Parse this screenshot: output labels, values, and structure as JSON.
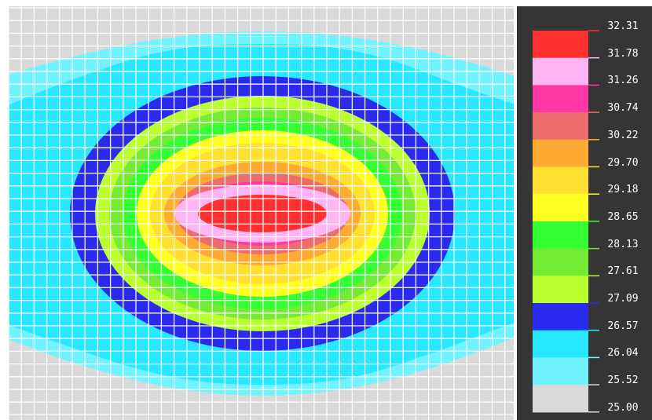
{
  "chart_data": {
    "type": "heatmap",
    "subtype": "filled-contour",
    "title": "",
    "xlabel": "",
    "ylabel": "",
    "grid": true,
    "legend_placement": "right",
    "colorbar": {
      "tick_labels": [
        "32.31",
        "31.78",
        "31.26",
        "30.74",
        "30.22",
        "29.70",
        "29.18",
        "28.65",
        "28.13",
        "27.61",
        "27.09",
        "26.57",
        "26.04",
        "25.52",
        "25.00"
      ],
      "levels_top_to_bottom": [
        {
          "range": [
            31.78,
            32.31
          ],
          "color": "#ff3030"
        },
        {
          "range": [
            31.26,
            31.78
          ],
          "color": "#ffb4f4"
        },
        {
          "range": [
            30.74,
            31.26
          ],
          "color": "#ff37a5"
        },
        {
          "range": [
            30.22,
            30.74
          ],
          "color": "#ef6c6c"
        },
        {
          "range": [
            29.7,
            30.22
          ],
          "color": "#ffaa33"
        },
        {
          "range": [
            29.18,
            29.7
          ],
          "color": "#ffe031"
        },
        {
          "range": [
            28.65,
            29.18
          ],
          "color": "#ffff22"
        },
        {
          "range": [
            28.13,
            28.65
          ],
          "color": "#33ff33"
        },
        {
          "range": [
            27.61,
            28.13
          ],
          "color": "#74ec35"
        },
        {
          "range": [
            27.09,
            27.61
          ],
          "color": "#baff2e"
        },
        {
          "range": [
            26.57,
            27.09
          ],
          "color": "#2b2bef"
        },
        {
          "range": [
            26.04,
            26.57
          ],
          "color": "#28e8ff"
        },
        {
          "range": [
            25.52,
            26.04
          ],
          "color": "#70f2ff"
        },
        {
          "range": [
            25.0,
            25.52
          ],
          "color": "#d9d9d9"
        }
      ]
    },
    "field": {
      "peak_value": 32.31,
      "min_value": 25.0,
      "shape": "elliptical hot spot centered in the plot, decreasing outward"
    }
  }
}
